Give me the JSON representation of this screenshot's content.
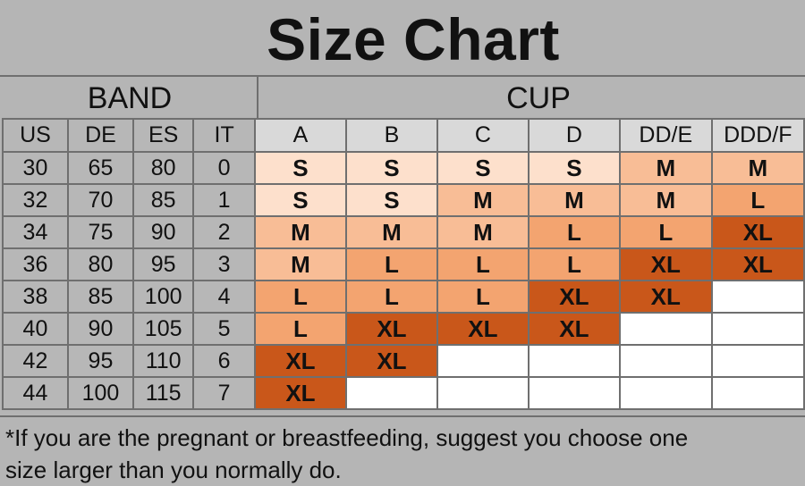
{
  "title": "Size Chart",
  "band_header": "BAND",
  "cup_header": "CUP",
  "band_columns": [
    "US",
    "DE",
    "ES",
    "IT"
  ],
  "cup_columns": [
    "A",
    "B",
    "C",
    "D",
    "DD/E",
    "DDD/F"
  ],
  "rows": [
    {
      "band": [
        "30",
        "65",
        "80",
        "0"
      ],
      "sizes": [
        "S",
        "S",
        "S",
        "S",
        "M",
        "M"
      ]
    },
    {
      "band": [
        "32",
        "70",
        "85",
        "1"
      ],
      "sizes": [
        "S",
        "S",
        "M",
        "M",
        "M",
        "L"
      ]
    },
    {
      "band": [
        "34",
        "75",
        "90",
        "2"
      ],
      "sizes": [
        "M",
        "M",
        "M",
        "L",
        "L",
        "XL"
      ]
    },
    {
      "band": [
        "36",
        "80",
        "95",
        "3"
      ],
      "sizes": [
        "M",
        "L",
        "L",
        "L",
        "XL",
        "XL"
      ]
    },
    {
      "band": [
        "38",
        "85",
        "100",
        "4"
      ],
      "sizes": [
        "L",
        "L",
        "L",
        "XL",
        "XL",
        ""
      ]
    },
    {
      "band": [
        "40",
        "90",
        "105",
        "5"
      ],
      "sizes": [
        "L",
        "XL",
        "XL",
        "XL",
        "",
        ""
      ]
    },
    {
      "band": [
        "42",
        "95",
        "110",
        "6"
      ],
      "sizes": [
        "XL",
        "XL",
        "",
        "",
        "",
        ""
      ]
    },
    {
      "band": [
        "44",
        "100",
        "115",
        "7"
      ],
      "sizes": [
        "XL",
        "",
        "",
        "",
        "",
        ""
      ]
    }
  ],
  "size_colors": {
    "S": "#fde0cc",
    "M": "#f8bd96",
    "L": "#f3a470",
    "XL": "#c9571a",
    "": "#ffffff"
  },
  "footer_line1": "*If you are the pregnant or breastfeeding, suggest you choose one",
  "footer_line2": "size larger than you normally do."
}
